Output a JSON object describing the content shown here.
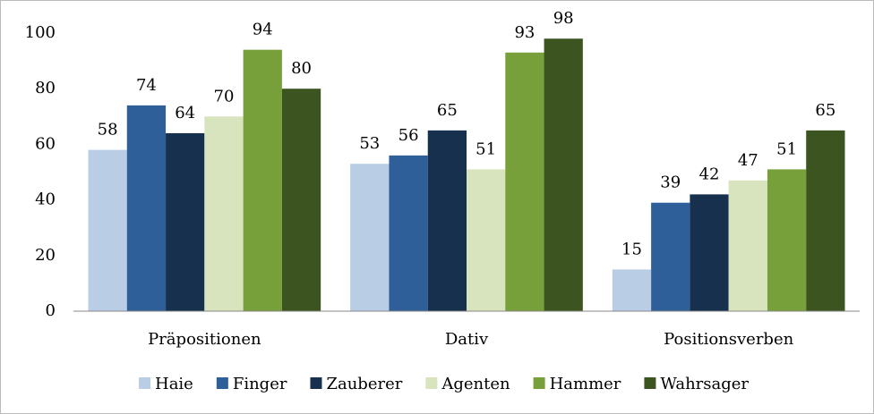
{
  "chart_data": {
    "type": "bar",
    "categories": [
      "Präpositionen",
      "Dativ",
      "Positionsverben"
    ],
    "series": [
      {
        "name": "Haie",
        "color": "#b9cde5",
        "values": [
          58,
          53,
          15
        ]
      },
      {
        "name": "Finger",
        "color": "#2f5f98",
        "values": [
          74,
          56,
          39
        ]
      },
      {
        "name": "Zauberer",
        "color": "#17304e",
        "values": [
          64,
          65,
          42
        ]
      },
      {
        "name": "Agenten",
        "color": "#d7e4bd",
        "values": [
          70,
          51,
          47
        ]
      },
      {
        "name": "Hammer",
        "color": "#77a03b",
        "values": [
          94,
          93,
          51
        ]
      },
      {
        "name": "Wahrsager",
        "color": "#3b5420",
        "values": [
          80,
          98,
          65
        ]
      }
    ],
    "ylim": [
      0,
      100
    ],
    "yticks": [
      0,
      20,
      40,
      60,
      80,
      100
    ],
    "grid": false,
    "legend": "bottom"
  }
}
